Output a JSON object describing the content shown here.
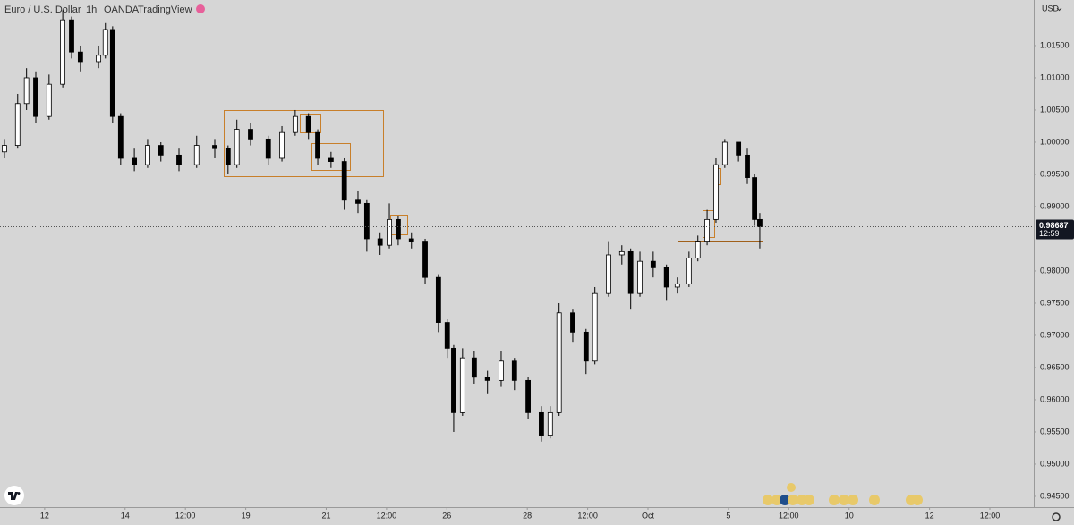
{
  "chart_data": {
    "type": "candlestick",
    "symbol": "Euro / U.S. Dollar",
    "interval": "1h",
    "source": "OANDA",
    "platform": "TradingView",
    "currency": "USD",
    "countdown": "12:59",
    "color": "#000000",
    "x": [
      -1.0,
      -0.67,
      -0.45,
      -0.22,
      0.11,
      0.45,
      0.67,
      0.89,
      1.34,
      1.51,
      1.69,
      1.89,
      2.23,
      2.56,
      2.89,
      3.34,
      3.78,
      4.23,
      4.56,
      4.78,
      5.12,
      5.56,
      5.9,
      6.23,
      6.56,
      6.79,
      7.12,
      7.45,
      7.79,
      8.01,
      8.34,
      8.57,
      8.79,
      9.12,
      9.46,
      9.79,
      10.01,
      10.17,
      10.39,
      10.68,
      11.01,
      11.35,
      11.68,
      12.02,
      12.35,
      12.57,
      12.79,
      13.13,
      13.46,
      13.68,
      14.02,
      14.35,
      14.57,
      14.8,
      15.13,
      15.46,
      15.73,
      16.02,
      16.24,
      16.47,
      16.69,
      16.91,
      17.25,
      17.47,
      17.65,
      17.78
    ],
    "open": [
      0.9985,
      0.9995,
      1.006,
      1.01,
      1.004,
      1.009,
      1.019,
      1.014,
      1.0125,
      1.0135,
      1.0175,
      1.004,
      0.9975,
      0.9965,
      0.9995,
      0.998,
      0.9965,
      0.9995,
      0.999,
      0.9965,
      1.002,
      1.0005,
      0.9975,
      1.0015,
      1.004,
      1.0015,
      0.9975,
      0.997,
      0.991,
      0.9905,
      0.985,
      0.984,
      0.988,
      0.985,
      0.9845,
      0.979,
      0.972,
      0.968,
      0.958,
      0.9665,
      0.9635,
      0.963,
      0.966,
      0.963,
      0.958,
      0.9545,
      0.958,
      0.9735,
      0.9705,
      0.966,
      0.9765,
      0.9825,
      0.983,
      0.9765,
      0.9815,
      0.9805,
      0.9775,
      0.978,
      0.982,
      0.9845,
      0.988,
      0.9965,
      1.0,
      0.998,
      0.9945,
      0.988
    ],
    "high": [
      1.0005,
      1.0075,
      1.0115,
      1.011,
      1.0105,
      1.0205,
      1.0195,
      1.015,
      1.015,
      1.0185,
      1.018,
      1.0045,
      0.999,
      1.0005,
      1.0,
      0.999,
      1.001,
      1.0005,
      0.9995,
      1.0035,
      1.003,
      1.001,
      1.0025,
      1.005,
      1.0045,
      1.002,
      0.9985,
      0.9975,
      0.9925,
      0.991,
      0.986,
      0.9905,
      0.9885,
      0.986,
      0.985,
      0.9795,
      0.9725,
      0.9685,
      0.968,
      0.9675,
      0.9645,
      0.9675,
      0.9665,
      0.9635,
      0.959,
      0.959,
      0.975,
      0.974,
      0.971,
      0.9775,
      0.9845,
      0.984,
      0.9835,
      0.983,
      0.983,
      0.981,
      0.979,
      0.983,
      0.9855,
      0.9895,
      0.9975,
      1.0005,
      1.0,
      0.999,
      0.995,
      0.989
    ],
    "low": [
      0.9975,
      0.999,
      1.005,
      1.003,
      1.0035,
      1.0085,
      1.013,
      1.011,
      1.0115,
      1.013,
      1.003,
      0.9965,
      0.9955,
      0.996,
      0.997,
      0.9955,
      0.996,
      0.9975,
      0.995,
      0.996,
      0.9995,
      0.9965,
      0.997,
      1.001,
      1.0005,
      0.9965,
      0.996,
      0.9895,
      0.989,
      0.983,
      0.9825,
      0.9835,
      0.984,
      0.9835,
      0.978,
      0.9705,
      0.9665,
      0.955,
      0.9575,
      0.9625,
      0.961,
      0.962,
      0.9615,
      0.957,
      0.9535,
      0.954,
      0.9575,
      0.969,
      0.964,
      0.9655,
      0.976,
      0.981,
      0.974,
      0.976,
      0.979,
      0.9755,
      0.9765,
      0.9775,
      0.9815,
      0.984,
      0.9875,
      0.996,
      0.997,
      0.9935,
      0.987,
      0.9835
    ],
    "close": [
      0.9995,
      1.006,
      1.01,
      1.004,
      1.009,
      1.019,
      1.014,
      1.0125,
      1.0135,
      1.0175,
      1.004,
      0.9975,
      0.9965,
      0.9995,
      0.998,
      0.9965,
      0.9995,
      0.999,
      0.9965,
      1.002,
      1.0005,
      0.9975,
      1.0015,
      1.004,
      1.0015,
      0.9975,
      0.997,
      0.991,
      0.9905,
      0.985,
      0.984,
      0.988,
      0.985,
      0.9845,
      0.979,
      0.972,
      0.968,
      0.958,
      0.9665,
      0.9635,
      0.963,
      0.966,
      0.963,
      0.958,
      0.9545,
      0.958,
      0.9735,
      0.9705,
      0.966,
      0.9765,
      0.9825,
      0.983,
      0.9765,
      0.9815,
      0.9805,
      0.9775,
      0.978,
      0.982,
      0.9845,
      0.988,
      0.9965,
      1.0,
      0.998,
      0.9945,
      0.988,
      0.98687
    ],
    "xlim": [
      -1.11,
      24.59
    ],
    "xticks": [
      {
        "value": 0,
        "label": "12"
      },
      {
        "value": 2,
        "label": "14"
      },
      {
        "value": 3.5,
        "label": "12:00"
      },
      {
        "value": 5,
        "label": "19"
      },
      {
        "value": 7,
        "label": "21"
      },
      {
        "value": 8.5,
        "label": "12:00"
      },
      {
        "value": 10,
        "label": "26"
      },
      {
        "value": 12,
        "label": "28"
      },
      {
        "value": 13.5,
        "label": "12:00"
      },
      {
        "value": 15,
        "label": "Oct"
      },
      {
        "value": 17,
        "label": "5"
      },
      {
        "value": 18.5,
        "label": "12:00"
      },
      {
        "value": 20,
        "label": "10"
      },
      {
        "value": 22,
        "label": "12"
      },
      {
        "value": 23.5,
        "label": "12:00"
      }
    ],
    "ylim": [
      0.94333,
      1.02208
    ],
    "yticks": [
      {
        "value": 0.945,
        "label": "0.94500"
      },
      {
        "value": 0.95,
        "label": "0.95000"
      },
      {
        "value": 0.955,
        "label": "0.95500"
      },
      {
        "value": 0.96,
        "label": "0.96000"
      },
      {
        "value": 0.965,
        "label": "0.96500"
      },
      {
        "value": 0.97,
        "label": "0.97000"
      },
      {
        "value": 0.975,
        "label": "0.97500"
      },
      {
        "value": 0.98,
        "label": "0.98000"
      },
      {
        "value": 0.99,
        "label": "0.99000"
      },
      {
        "value": 0.995,
        "label": "0.99500"
      },
      {
        "value": 1.0,
        "label": "1.00000"
      },
      {
        "value": 1.005,
        "label": "1.00500"
      },
      {
        "value": 1.01,
        "label": "1.01000"
      },
      {
        "value": 1.015,
        "label": "1.01500"
      }
    ]
  }
}
